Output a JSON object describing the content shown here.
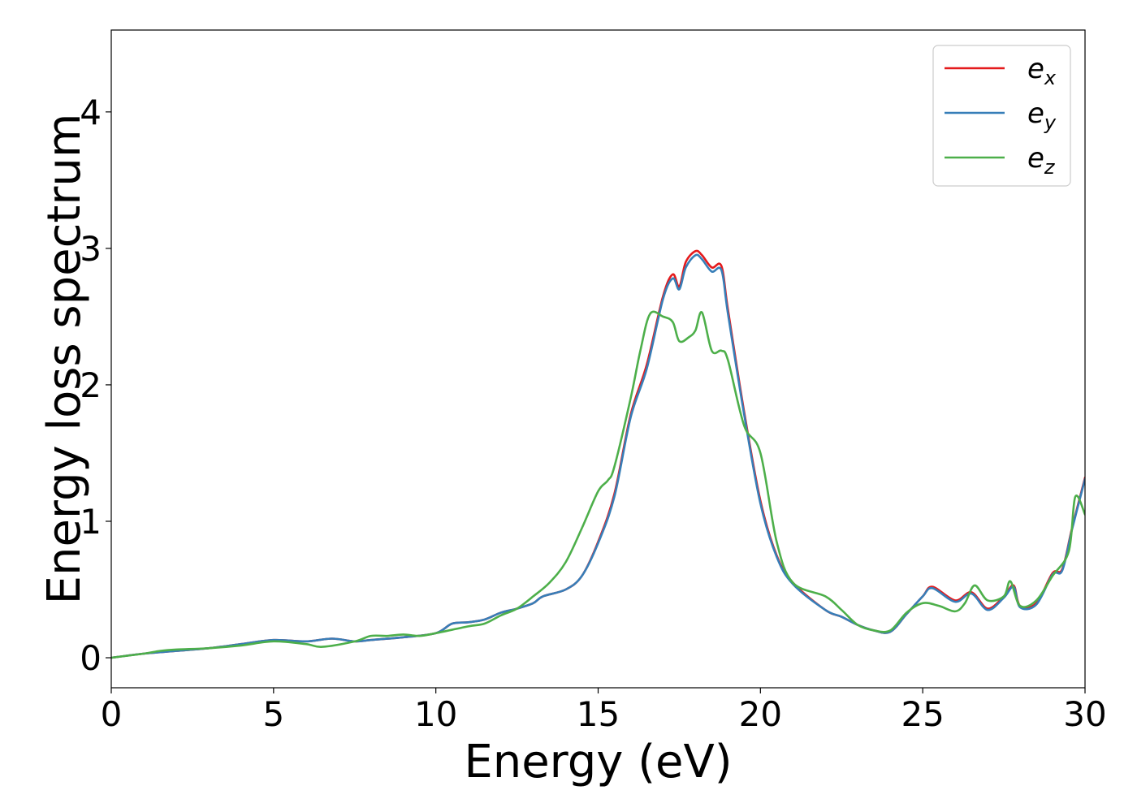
{
  "chart_data": {
    "type": "line",
    "xlabel": "Energy (eV)",
    "ylabel": "Energy loss spectrum",
    "xlim": [
      0,
      30
    ],
    "ylim": [
      -0.22,
      4.6
    ],
    "xticks": [
      0,
      5,
      10,
      15,
      20,
      25,
      30
    ],
    "yticks": [
      0,
      1,
      2,
      3,
      4
    ],
    "x_tick_labels": [
      "0",
      "5",
      "10",
      "15",
      "20",
      "25",
      "30"
    ],
    "y_tick_labels": [
      "0",
      "1",
      "2",
      "3",
      "4"
    ],
    "grid": false,
    "legend_position": "top-right",
    "series": [
      {
        "name": "e_x",
        "legend_base": "e",
        "legend_sub": "x",
        "color": "#e41a1c",
        "x": [
          0,
          1,
          2,
          3,
          4,
          5,
          6,
          6.8,
          7.5,
          8,
          9,
          10,
          10.5,
          11,
          11.5,
          12,
          12.5,
          13,
          13.3,
          14,
          14.5,
          15,
          15.5,
          16,
          16.5,
          17,
          17.3,
          17.5,
          17.7,
          18,
          18.2,
          18.5,
          18.8,
          19,
          19.5,
          20,
          20.5,
          21,
          22,
          22.5,
          23,
          23.5,
          24,
          24.5,
          25,
          25.3,
          26,
          26.5,
          27,
          27.5,
          27.8,
          28,
          28.5,
          29,
          29.3,
          29.6,
          30
        ],
        "y": [
          0,
          0.03,
          0.05,
          0.07,
          0.1,
          0.13,
          0.12,
          0.14,
          0.12,
          0.13,
          0.15,
          0.18,
          0.25,
          0.26,
          0.28,
          0.33,
          0.36,
          0.4,
          0.45,
          0.5,
          0.6,
          0.85,
          1.2,
          1.78,
          2.15,
          2.65,
          2.81,
          2.72,
          2.9,
          2.98,
          2.95,
          2.86,
          2.87,
          2.55,
          1.8,
          1.15,
          0.75,
          0.55,
          0.35,
          0.3,
          0.24,
          0.2,
          0.19,
          0.32,
          0.45,
          0.52,
          0.42,
          0.48,
          0.36,
          0.45,
          0.53,
          0.38,
          0.4,
          0.62,
          0.65,
          0.95,
          1.32
        ]
      },
      {
        "name": "e_y",
        "legend_base": "e",
        "legend_sub": "y",
        "color": "#377eb8",
        "x": [
          0,
          1,
          2,
          3,
          4,
          5,
          6,
          6.8,
          7.5,
          8,
          9,
          10,
          10.5,
          11,
          11.5,
          12,
          12.5,
          13,
          13.3,
          14,
          14.5,
          15,
          15.5,
          16,
          16.5,
          17,
          17.3,
          17.5,
          17.7,
          18,
          18.2,
          18.5,
          18.8,
          19,
          19.5,
          20,
          20.5,
          21,
          22,
          22.5,
          23,
          23.5,
          24,
          24.5,
          25,
          25.3,
          26,
          26.5,
          27,
          27.5,
          27.8,
          28,
          28.5,
          29,
          29.3,
          29.6,
          30
        ],
        "y": [
          0,
          0.03,
          0.05,
          0.07,
          0.1,
          0.13,
          0.12,
          0.14,
          0.12,
          0.13,
          0.15,
          0.18,
          0.25,
          0.26,
          0.28,
          0.33,
          0.36,
          0.4,
          0.45,
          0.5,
          0.6,
          0.84,
          1.18,
          1.76,
          2.12,
          2.63,
          2.78,
          2.7,
          2.86,
          2.95,
          2.92,
          2.83,
          2.84,
          2.52,
          1.78,
          1.13,
          0.74,
          0.54,
          0.35,
          0.3,
          0.24,
          0.2,
          0.19,
          0.32,
          0.45,
          0.51,
          0.41,
          0.47,
          0.35,
          0.44,
          0.52,
          0.37,
          0.39,
          0.61,
          0.64,
          0.94,
          1.31
        ]
      },
      {
        "name": "e_z",
        "legend_base": "e",
        "legend_sub": "z",
        "color": "#4daf4a",
        "x": [
          0,
          1,
          1.5,
          2,
          3,
          4,
          5,
          6,
          6.5,
          7.5,
          8,
          8.5,
          9,
          9.5,
          10,
          11,
          11.5,
          12,
          12.5,
          13,
          13.5,
          14,
          14.5,
          15,
          15.3,
          15.5,
          16,
          16.3,
          16.6,
          17,
          17.3,
          17.5,
          17.8,
          18,
          18.2,
          18.5,
          18.8,
          19,
          19.5,
          20,
          20.5,
          21,
          22,
          22.5,
          23,
          23.5,
          24,
          24.5,
          25,
          25.5,
          26,
          26.3,
          26.6,
          27,
          27.5,
          27.7,
          28,
          28.5,
          29,
          29.5,
          29.7,
          30
        ],
        "y": [
          0,
          0.03,
          0.05,
          0.06,
          0.07,
          0.09,
          0.12,
          0.1,
          0.08,
          0.12,
          0.16,
          0.16,
          0.17,
          0.16,
          0.18,
          0.23,
          0.25,
          0.31,
          0.36,
          0.45,
          0.55,
          0.7,
          0.95,
          1.22,
          1.3,
          1.4,
          1.9,
          2.25,
          2.52,
          2.5,
          2.46,
          2.32,
          2.35,
          2.4,
          2.53,
          2.25,
          2.25,
          2.18,
          1.7,
          1.5,
          0.85,
          0.55,
          0.45,
          0.35,
          0.24,
          0.2,
          0.2,
          0.33,
          0.4,
          0.38,
          0.34,
          0.4,
          0.53,
          0.42,
          0.45,
          0.56,
          0.38,
          0.42,
          0.6,
          0.78,
          1.18,
          1.05
        ]
      }
    ]
  }
}
